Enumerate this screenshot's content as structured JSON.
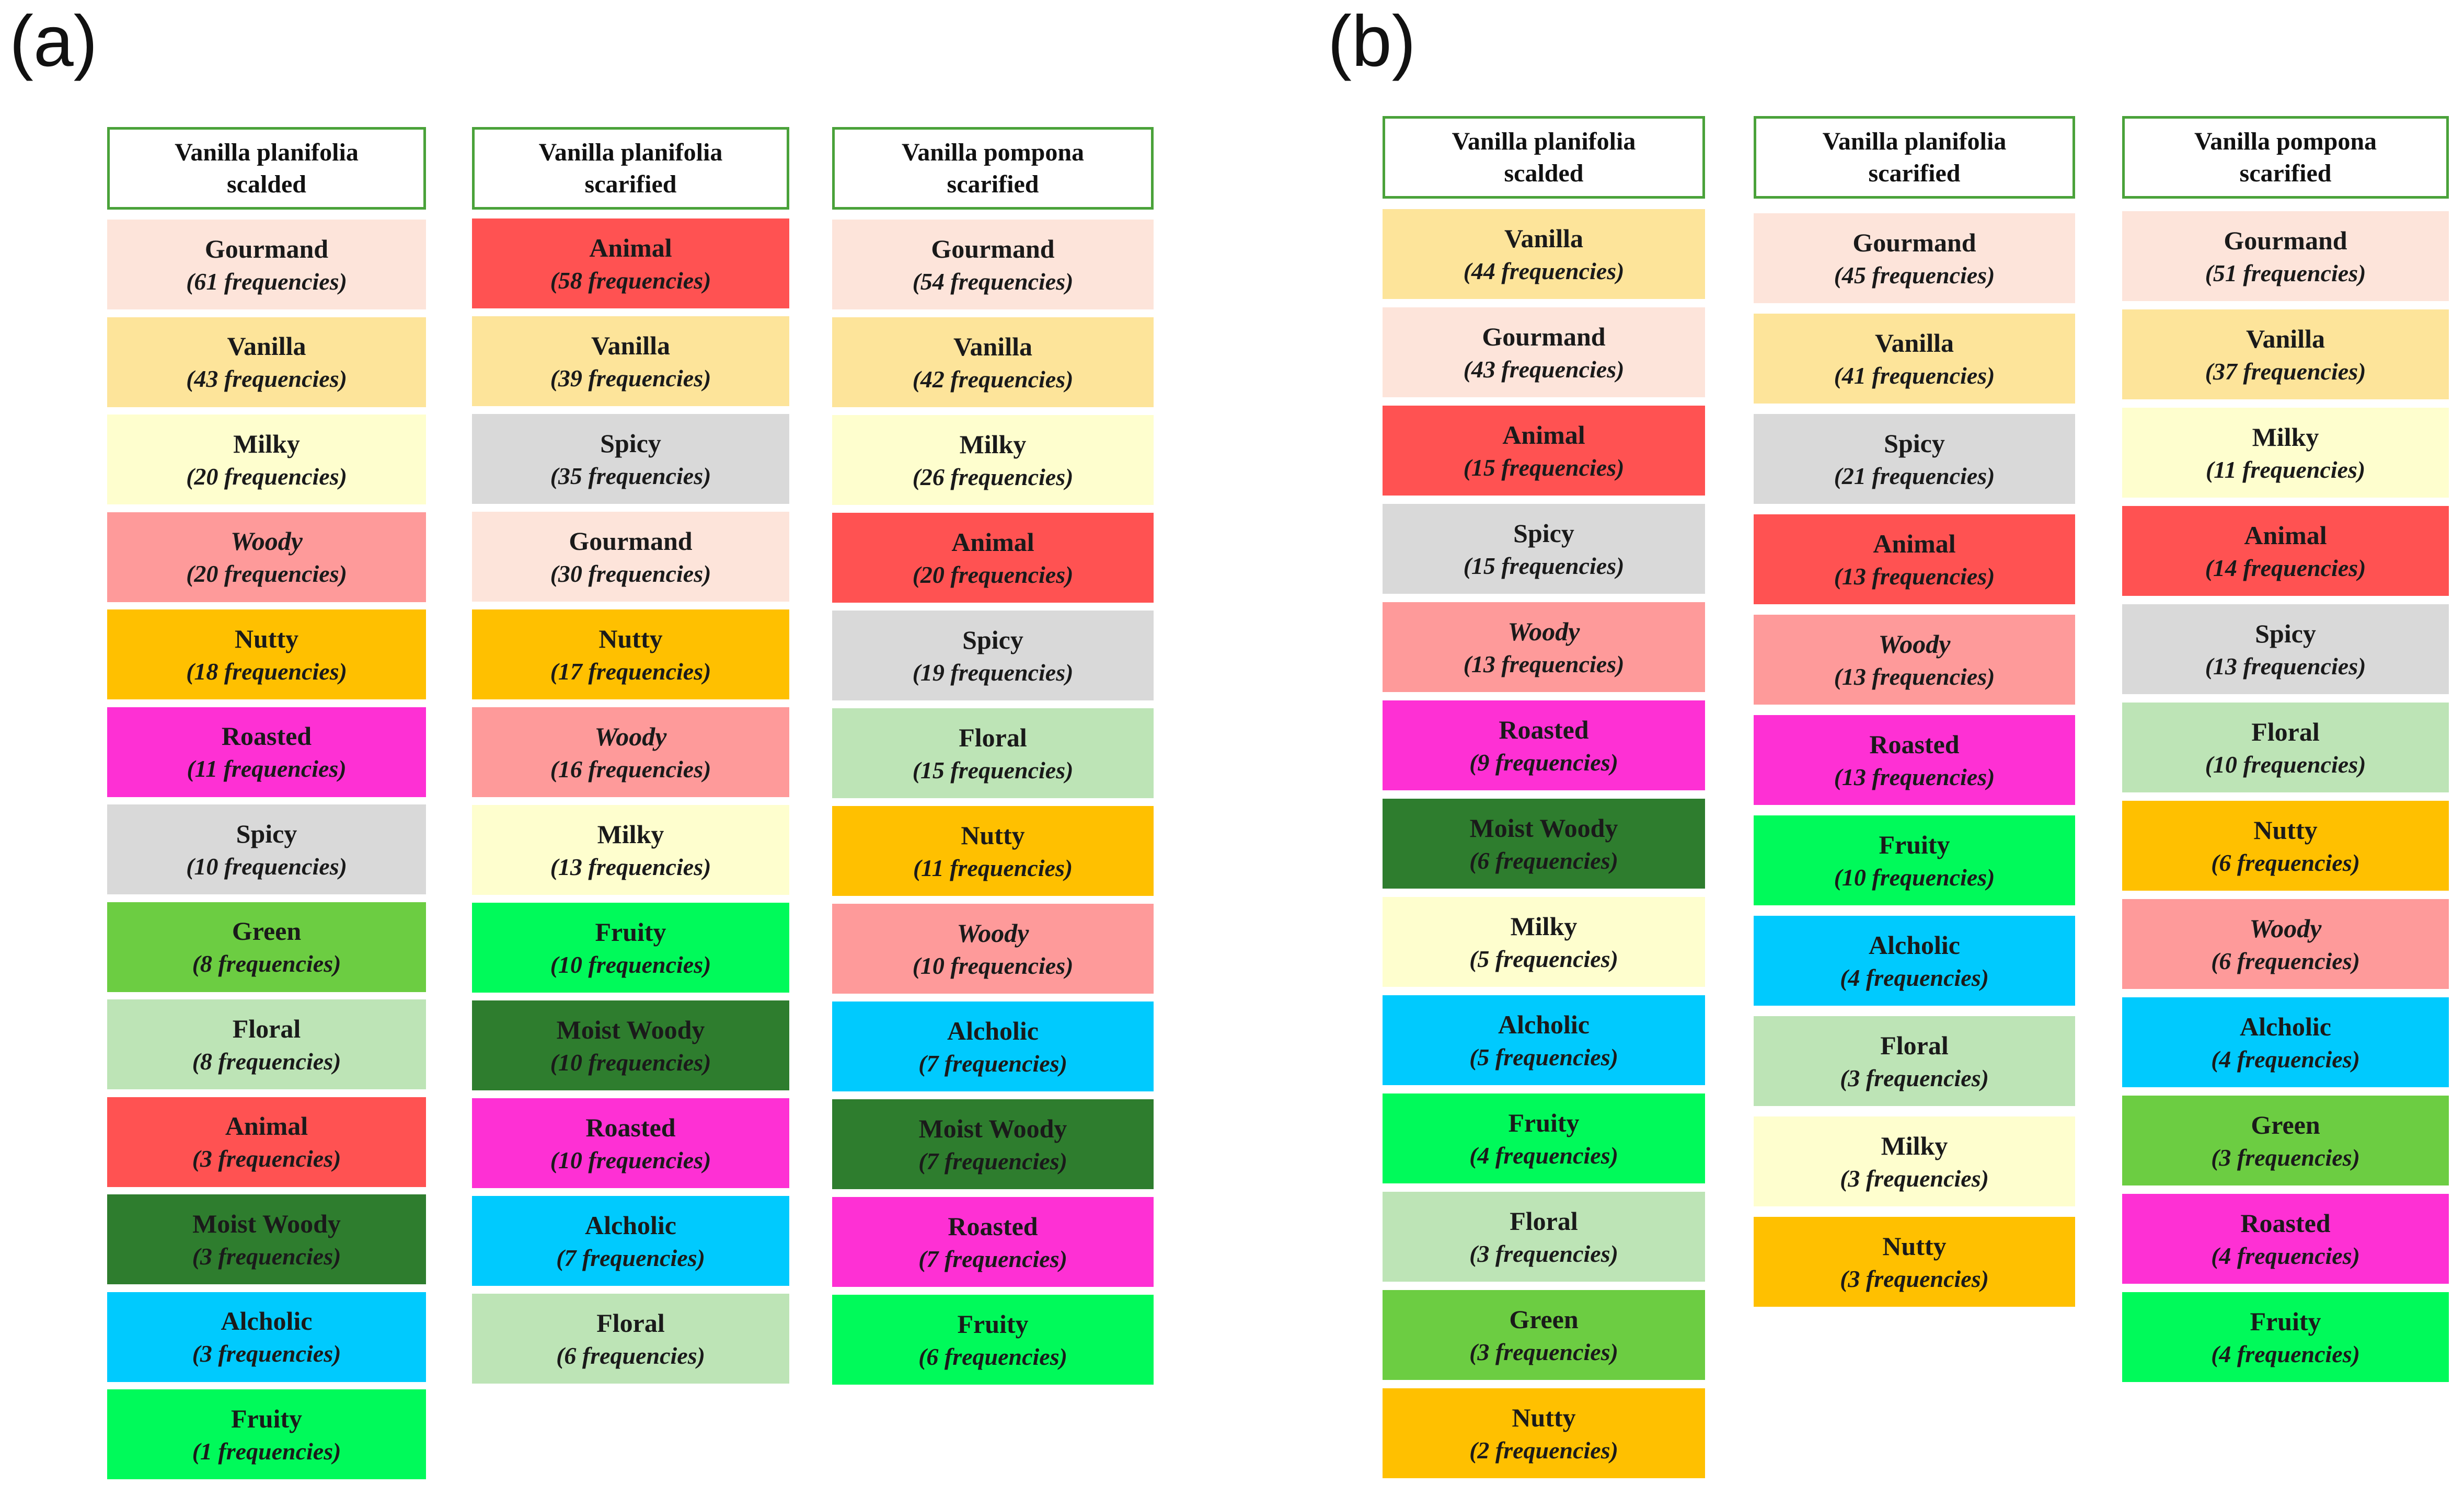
{
  "panels": [
    {
      "label": "(a)",
      "columns": [
        {
          "title_line1": "Vanilla planifolia",
          "title_line2": "scalded",
          "items": [
            {
              "name": "Gourmand",
              "freq": "(61  frequencies)",
              "color": "#fde4da"
            },
            {
              "name": "Vanilla",
              "freq": "(43 frequencies)",
              "color": "#fde49a"
            },
            {
              "name": "Milky",
              "freq": "(20 frequencies)",
              "color": "#fefece"
            },
            {
              "name": "Woody",
              "freq": "(20 frequencies)",
              "color": "#fe9a9a",
              "italic": true
            },
            {
              "name": "Nutty",
              "freq": "(18 frequencies)",
              "color": "#ffc000"
            },
            {
              "name": "Roasted",
              "freq": "(11 frequencies)",
              "color": "#fe30d4"
            },
            {
              "name": "Spicy",
              "freq": "(10 frequencies)",
              "color": "#d9d9d9"
            },
            {
              "name": "Green",
              "freq": "(8 frequencies)",
              "color": "#6ccd42"
            },
            {
              "name": "Floral",
              "freq": "(8 frequencies)",
              "color": "#bde4b6"
            },
            {
              "name": "Animal",
              "freq": "(3 frequencies)",
              "color": "#ff5252"
            },
            {
              "name": "Moist Woody",
              "freq": "(3 frequencies)",
              "color": "#2e7d2e"
            },
            {
              "name": "Alcholic",
              "freq": "(3 frequencies)",
              "color": "#00cafe"
            },
            {
              "name": "Fruity",
              "freq": "(1 frequencies)",
              "color": "#00fa5a"
            }
          ]
        },
        {
          "title_line1": "Vanilla planifolia",
          "title_line2": "scarified",
          "items": [
            {
              "name": "Animal",
              "freq": "(58 frequencies)",
              "color": "#ff5252"
            },
            {
              "name": "Vanilla",
              "freq": "(39 frequencies)",
              "color": "#fde49a"
            },
            {
              "name": "Spicy",
              "freq": "(35 frequencies)",
              "color": "#d9d9d9"
            },
            {
              "name": "Gourmand",
              "freq": "(30  frequencies)",
              "color": "#fde4da"
            },
            {
              "name": "Nutty",
              "freq": "(17 frequencies)",
              "color": "#ffc000"
            },
            {
              "name": "Woody",
              "freq": "(16 frequencies)",
              "color": "#fe9a9a",
              "italic": true
            },
            {
              "name": "Milky",
              "freq": "(13 frequencies)",
              "color": "#fefece"
            },
            {
              "name": "Fruity",
              "freq": "(10 frequencies)",
              "color": "#00fa5a"
            },
            {
              "name": "Moist Woody",
              "freq": "(10 frequencies)",
              "color": "#2e7d2e"
            },
            {
              "name": "Roasted",
              "freq": "(10 frequencies)",
              "color": "#fe30d4"
            },
            {
              "name": "Alcholic",
              "freq": "(7 frequencies)",
              "color": "#00cafe"
            },
            {
              "name": "Floral",
              "freq": "(6 frequencies)",
              "color": "#bde4b6"
            }
          ]
        },
        {
          "title_line1": "Vanilla pompona",
          "title_line2": "scarified",
          "items": [
            {
              "name": "Gourmand",
              "freq": "(54  frequencies)",
              "color": "#fde4da"
            },
            {
              "name": "Vanilla",
              "freq": "(42 frequencies)",
              "color": "#fde49a"
            },
            {
              "name": "Milky",
              "freq": "(26 frequencies)",
              "color": "#fefece"
            },
            {
              "name": "Animal",
              "freq": "(20 frequencies)",
              "color": "#ff5252"
            },
            {
              "name": "Spicy",
              "freq": "(19 frequencies)",
              "color": "#d9d9d9"
            },
            {
              "name": "Floral",
              "freq": "(15 frequencies)",
              "color": "#bde4b6"
            },
            {
              "name": "Nutty",
              "freq": "(11 frequencies)",
              "color": "#ffc000"
            },
            {
              "name": "Woody",
              "freq": "(10 frequencies)",
              "color": "#fe9a9a",
              "italic": true
            },
            {
              "name": "Alcholic",
              "freq": "(7 frequencies)",
              "color": "#00cafe"
            },
            {
              "name": "Moist Woody",
              "freq": "(7 frequencies)",
              "color": "#2e7d2e"
            },
            {
              "name": "Roasted",
              "freq": "(7 frequencies)",
              "color": "#fe30d4"
            },
            {
              "name": "Fruity",
              "freq": "(6 frequencies)",
              "color": "#00fa5a"
            }
          ]
        }
      ]
    },
    {
      "label": "(b)",
      "columns": [
        {
          "title_line1": "Vanilla planifolia",
          "title_line2": "scalded",
          "items": [
            {
              "name": "Vanilla",
              "freq": "(44 frequencies)",
              "color": "#fde49a"
            },
            {
              "name": "Gourmand",
              "freq": "(43 frequencies)",
              "color": "#fde4da"
            },
            {
              "name": "Animal",
              "freq": "(15 frequencies)",
              "color": "#ff5252"
            },
            {
              "name": "Spicy",
              "freq": "(15 frequencies)",
              "color": "#d9d9d9"
            },
            {
              "name": "Woody",
              "freq": "(13 frequencies)",
              "color": "#fe9a9a",
              "italic": true
            },
            {
              "name": "Roasted",
              "freq": "(9 frequencies)",
              "color": "#fe30d4"
            },
            {
              "name": "Moist Woody",
              "freq": "(6 frequencies)",
              "color": "#2e7d2e"
            },
            {
              "name": "Milky",
              "freq": "(5 frequencies)",
              "color": "#fefece"
            },
            {
              "name": "Alcholic",
              "freq": "(5 frequencies)",
              "color": "#00cafe"
            },
            {
              "name": "Fruity",
              "freq": "(4 frequencies)",
              "color": "#00fa5a"
            },
            {
              "name": "Floral",
              "freq": "(3 frequencies)",
              "color": "#bde4b6"
            },
            {
              "name": "Green",
              "freq": "(3 frequencies)",
              "color": "#6ccd42"
            },
            {
              "name": "Nutty",
              "freq": "(2 frequencies)",
              "color": "#ffc000"
            }
          ]
        },
        {
          "title_line1": "Vanilla planifolia",
          "title_line2": "scarified",
          "items": [
            {
              "name": "Gourmand",
              "freq": "(45  frequencies)",
              "color": "#fde4da"
            },
            {
              "name": "Vanilla",
              "freq": "(41 frequencies)",
              "color": "#fde49a"
            },
            {
              "name": "Spicy",
              "freq": "(21 frequencies)",
              "color": "#d9d9d9"
            },
            {
              "name": "Animal",
              "freq": "(13 frequencies)",
              "color": "#ff5252"
            },
            {
              "name": "Woody",
              "freq": "(13 frequencies)",
              "color": "#fe9a9a",
              "italic": true
            },
            {
              "name": "Roasted",
              "freq": "(13 frequencies)",
              "color": "#fe30d4"
            },
            {
              "name": "Fruity",
              "freq": "(10 frequencies)",
              "color": "#00fa5a"
            },
            {
              "name": "Alcholic",
              "freq": "(4 frequencies)",
              "color": "#00cafe"
            },
            {
              "name": "Floral",
              "freq": "(3 frequencies)",
              "color": "#bde4b6"
            },
            {
              "name": "Milky",
              "freq": "(3 frequencies)",
              "color": "#fefece"
            },
            {
              "name": "Nutty",
              "freq": "(3 frequencies)",
              "color": "#ffc000"
            }
          ]
        },
        {
          "title_line1": "Vanilla pompona",
          "title_line2": "scarified",
          "items": [
            {
              "name": "Gourmand",
              "freq": "(51  frequencies)",
              "color": "#fde4da"
            },
            {
              "name": "Vanilla",
              "freq": "(37 frequencies)",
              "color": "#fde49a"
            },
            {
              "name": "Milky",
              "freq": "(11 frequencies)",
              "color": "#fefece"
            },
            {
              "name": "Animal",
              "freq": "(14 frequencies)",
              "color": "#ff5252"
            },
            {
              "name": "Spicy",
              "freq": "(13 frequencies)",
              "color": "#d9d9d9"
            },
            {
              "name": "Floral",
              "freq": "(10 frequencies)",
              "color": "#bde4b6"
            },
            {
              "name": "Nutty",
              "freq": "(6 frequencies)",
              "color": "#ffc000"
            },
            {
              "name": "Woody",
              "freq": "(6 frequencies)",
              "color": "#fe9a9a",
              "italic": true
            },
            {
              "name": "Alcholic",
              "freq": "(4 frequencies)",
              "color": "#00cafe"
            },
            {
              "name": "Green",
              "freq": "(3 frequencies)",
              "color": "#6ccd42"
            },
            {
              "name": "Roasted",
              "freq": "(4 frequencies)",
              "color": "#fe30d4"
            },
            {
              "name": "Fruity",
              "freq": "(4 frequencies)",
              "color": "#00fa5a"
            }
          ]
        }
      ]
    }
  ]
}
